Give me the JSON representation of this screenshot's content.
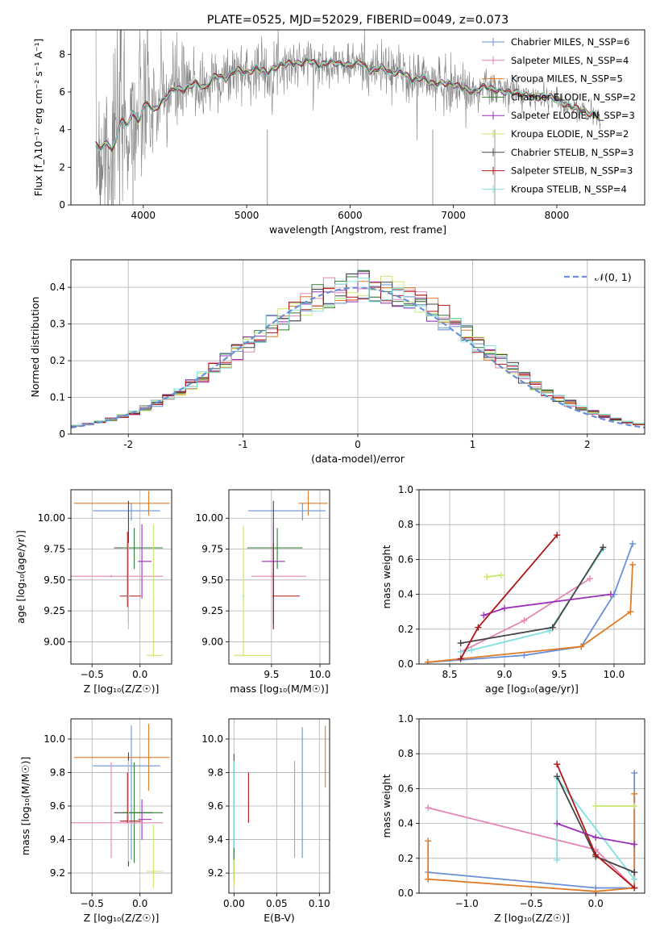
{
  "chart_data": [
    {
      "id": "spectrum",
      "type": "line",
      "title": "PLATE=0525, MJD=52029, FIBERID=0049, z=0.073",
      "xlabel": "wavelength [Angstrom, rest frame]",
      "ylabel": "Flux [f_λ10⁻¹⁷ erg cm⁻² s⁻¹ A⁻¹]",
      "xlim": [
        3300,
        8850
      ],
      "ylim": [
        0,
        9.3
      ],
      "xticks": [
        4000,
        5000,
        6000,
        7000,
        8000
      ],
      "yticks": [
        0,
        2,
        4,
        6,
        8
      ],
      "grid": false,
      "legend_position": "top-right",
      "legend": [
        {
          "label": "Chabrier MILES, N_SSP=6",
          "color": "#6a8fd6"
        },
        {
          "label": "Salpeter MILES, N_SSP=4",
          "color": "#e586b4"
        },
        {
          "label": "Kroupa MILES, N_SSP=5",
          "color": "#e07b28"
        },
        {
          "label": "Chabrier ELODIE, N_SSP=2",
          "color": "#2e7d32"
        },
        {
          "label": "Salpeter ELODIE, N_SSP=3",
          "color": "#9a2fb8"
        },
        {
          "label": "Kroupa ELODIE, N_SSP=2",
          "color": "#c9e86a"
        },
        {
          "label": "Chabrier STELIB, N_SSP=3",
          "color": "#444444"
        },
        {
          "label": "Salpeter STELIB, N_SSP=3",
          "color": "#b01515"
        },
        {
          "label": "Kroupa STELIB, N_SSP=4",
          "color": "#7ee0e0"
        }
      ],
      "data_color": "#808080",
      "data_x": [
        3540,
        3600,
        3650,
        3700,
        3750,
        3800,
        3850,
        3900,
        3950,
        4000,
        4050,
        4100,
        4200,
        4300,
        4400,
        4500,
        4600,
        4700,
        4800,
        4900,
        5000,
        5100,
        5200,
        5300,
        5400,
        5500,
        5600,
        5700,
        5800,
        5900,
        6000,
        6100,
        6200,
        6300,
        6400,
        6500,
        6600,
        6700,
        6800,
        6900,
        7000,
        7100,
        7200,
        7300,
        7400,
        7500,
        7600,
        7700,
        7800,
        7900,
        8000,
        8100,
        8200,
        8300,
        8400
      ],
      "data_y": [
        3.2,
        3.0,
        3.4,
        2.8,
        3.8,
        4.6,
        4.2,
        5.0,
        4.3,
        5.2,
        5.4,
        5.0,
        5.6,
        6.2,
        6.1,
        6.5,
        6.2,
        6.9,
        6.7,
        7.2,
        7.0,
        7.3,
        7.0,
        7.4,
        7.5,
        7.5,
        7.7,
        7.4,
        7.6,
        7.5,
        7.4,
        7.6,
        7.1,
        7.3,
        7.0,
        7.1,
        6.6,
        6.8,
        6.4,
        6.5,
        6.4,
        6.2,
        6.0,
        6.3,
        6.1,
        6.0,
        6.0,
        5.8,
        5.7,
        5.8,
        5.6,
        5.3,
        5.1,
        4.9,
        4.7
      ],
      "noise": [
        5.0,
        5.0,
        5.0,
        5.0,
        4.5,
        4.5,
        4.0,
        4.0,
        3.5,
        3.5,
        3.0,
        3.0,
        2.5,
        2.2,
        2.0,
        1.8,
        1.6,
        1.5,
        1.4,
        1.3,
        1.3,
        1.2,
        1.2,
        1.1,
        1.1,
        1.0,
        1.0,
        1.0,
        0.9,
        0.9,
        1.0,
        1.0,
        1.1,
        1.1,
        1.2,
        1.2,
        1.3,
        1.4,
        1.4,
        1.3,
        1.2,
        1.1,
        1.0,
        0.9,
        0.8,
        0.8,
        0.7,
        0.7,
        0.6,
        0.6,
        0.5,
        0.5,
        0.5,
        0.5,
        0.5
      ]
    },
    {
      "id": "residuals",
      "type": "bar",
      "xlabel": "(data-model)/error",
      "ylabel": "Normed distribution",
      "xlim": [
        -2.5,
        2.5
      ],
      "ylim": [
        0,
        0.475
      ],
      "xticks": [
        -2,
        -1,
        0,
        1,
        2
      ],
      "yticks": [
        0.0,
        0.1,
        0.2,
        0.3,
        0.4
      ],
      "grid": true,
      "legend_position": "top-right",
      "legend": [
        {
          "label": "𝒩(0, 1)",
          "color": "#6a8fd6"
        }
      ],
      "bin_width": 0.1,
      "series_colors": [
        "#6a8fd6",
        "#e586b4",
        "#e07b28",
        "#2e7d32",
        "#9a2fb8",
        "#c9e86a",
        "#444444",
        "#b01515",
        "#7ee0e0"
      ]
    },
    {
      "id": "age-vs-Z",
      "type": "scatter",
      "xlabel": "Z [log₁₀(Z/Z☉)]",
      "ylabel": "age  [log₁₀(age/yr)]",
      "xlim": [
        -0.72,
        0.33
      ],
      "ylim": [
        8.82,
        10.23
      ],
      "xticks": [
        -0.5,
        0.0
      ],
      "xticklabels": [
        "−0.5",
        "0.0"
      ],
      "yticks": [
        9.0,
        9.25,
        9.5,
        9.75,
        10.0
      ],
      "yticklabels": [
        "9.00",
        "9.25",
        "9.50",
        "9.75",
        "10.00"
      ],
      "grid": true,
      "points": [
        {
          "x": 0.09,
          "y": 10.12,
          "xerr": [
            0.78,
            0.22
          ],
          "yerr": [
            0.1,
            0.1
          ],
          "color": "#e07b28"
        },
        {
          "x": -0.09,
          "y": 10.06,
          "xerr": [
            0.4,
            0.3
          ],
          "yerr": [
            0.08,
            0.06
          ],
          "color": "#6a8fd6"
        },
        {
          "x": -0.12,
          "y": 9.76,
          "xerr": [
            0.15,
            0.25
          ],
          "yerr": [
            0.62,
            0.38
          ],
          "color": "#444444"
        },
        {
          "x": -0.06,
          "y": 9.76,
          "xerr": [
            0.12,
            0.3
          ],
          "yerr": [
            0.17,
            0.16
          ],
          "color": "#2e7d32"
        },
        {
          "x": 0.02,
          "y": 9.65,
          "xerr": [
            0.04,
            0.1
          ],
          "yerr": [
            0.3,
            0.3
          ],
          "color": "#9a2fb8"
        },
        {
          "x": -0.3,
          "y": 9.53,
          "xerr": [
            0.48,
            0.54
          ],
          "yerr": [
            0.01,
            0.01
          ],
          "color": "#e586b4"
        },
        {
          "x": -0.13,
          "y": 9.37,
          "xerr": [
            0.08,
            0.14
          ],
          "yerr": [
            0.09,
            0.52
          ],
          "color": "#b01515"
        },
        {
          "x": -0.12,
          "y": 9.37,
          "xerr": [
            0.01,
            0.01
          ],
          "yerr": [
            0.27,
            0.43
          ],
          "color": "#7ee0e0"
        },
        {
          "x": 0.14,
          "y": 8.89,
          "xerr": [
            0.07,
            0.1
          ],
          "yerr": [
            0.01,
            1.06
          ],
          "color": "#c9e86a"
        }
      ]
    },
    {
      "id": "age-vs-mass",
      "type": "scatter",
      "xlabel": "mass [log₁₀(M/M☉)]",
      "ylabel": "",
      "xlim": [
        9.06,
        10.1
      ],
      "ylim": [
        8.82,
        10.23
      ],
      "xticks": [
        9.5,
        10.0
      ],
      "xticklabels": [
        "9.5",
        "10.0"
      ],
      "yticks": [
        9.0,
        9.25,
        9.5,
        9.75,
        10.0
      ],
      "yticklabels": [
        "9.00",
        "9.25",
        "9.50",
        "9.75",
        "10.00"
      ],
      "grid": true,
      "points": [
        {
          "x": 9.88,
          "y": 10.12,
          "xerr": [
            0.1,
            0.2
          ],
          "yerr": [
            0.1,
            0.1
          ],
          "color": "#e07b28"
        },
        {
          "x": 9.82,
          "y": 10.06,
          "xerr": [
            0.56,
            0.24
          ],
          "yerr": [
            0.08,
            0.06
          ],
          "color": "#6a8fd6"
        },
        {
          "x": 9.52,
          "y": 9.76,
          "xerr": [
            0.27,
            0.26
          ],
          "yerr": [
            0.62,
            0.38
          ],
          "color": "#444444"
        },
        {
          "x": 9.56,
          "y": 9.76,
          "xerr": [
            0.3,
            0.26
          ],
          "yerr": [
            0.17,
            0.16
          ],
          "color": "#2e7d32"
        },
        {
          "x": 9.52,
          "y": 9.65,
          "xerr": [
            0.12,
            0.12
          ],
          "yerr": [
            0.3,
            0.3
          ],
          "color": "#9a2fb8"
        },
        {
          "x": 9.5,
          "y": 9.53,
          "xerr": [
            0.21,
            0.36
          ],
          "yerr": [
            0.01,
            0.01
          ],
          "color": "#e586b4"
        },
        {
          "x": 9.52,
          "y": 9.37,
          "xerr": [
            0.01,
            0.27
          ],
          "yerr": [
            0.27,
            0.43
          ],
          "color": "#b01515"
        },
        {
          "x": 9.21,
          "y": 9.37,
          "xerr": [
            0.01,
            0.01
          ],
          "yerr": [
            0.28,
            0.56
          ],
          "color": "#7ee0e0"
        },
        {
          "x": 9.21,
          "y": 8.89,
          "xerr": [
            0.1,
            0.28
          ],
          "yerr": [
            0.01,
            1.05
          ],
          "color": "#c9e86a"
        }
      ]
    },
    {
      "id": "mass-weight-vs-age",
      "type": "line",
      "xlabel": "age  [log₁₀(age/yr)]",
      "ylabel": "mass weight",
      "xlim": [
        8.22,
        10.28
      ],
      "ylim": [
        0,
        1.0
      ],
      "xticks": [
        8.5,
        9.0,
        9.5,
        10.0
      ],
      "xticklabels": [
        "8.5",
        "9.0",
        "9.5",
        "10.0"
      ],
      "yticks": [
        0.0,
        0.2,
        0.4,
        0.6,
        0.8,
        1.0
      ],
      "yticklabels": [
        "0.0",
        "0.2",
        "0.4",
        "0.6",
        "0.8",
        "1.0"
      ],
      "grid": true,
      "series": [
        {
          "color": "#6a8fd6",
          "x": [
            8.3,
            9.18,
            9.7,
            10.0,
            10.17
          ],
          "y": [
            0.01,
            0.05,
            0.1,
            0.4,
            0.69
          ]
        },
        {
          "color": "#e07b28",
          "x": [
            8.3,
            8.6,
            9.7,
            10.15,
            10.17
          ],
          "y": [
            0.01,
            0.03,
            0.1,
            0.3,
            0.57
          ]
        },
        {
          "color": "#e586b4",
          "x": [
            8.6,
            9.18,
            9.78
          ],
          "y": [
            0.07,
            0.25,
            0.49
          ]
        },
        {
          "color": "#7ee0e0",
          "x": [
            8.6,
            8.7,
            9.41,
            9.9
          ],
          "y": [
            0.07,
            0.08,
            0.19,
            0.66
          ]
        },
        {
          "color": "#444444",
          "x": [
            8.6,
            9.44,
            9.9
          ],
          "y": [
            0.12,
            0.21,
            0.67
          ]
        },
        {
          "color": "#9a2fb8",
          "x": [
            8.81,
            9.0,
            9.97
          ],
          "y": [
            0.28,
            0.32,
            0.4
          ]
        },
        {
          "color": "#b01515",
          "x": [
            8.6,
            8.76,
            9.48
          ],
          "y": [
            0.03,
            0.21,
            0.74
          ]
        },
        {
          "color": "#c9e86a",
          "x": [
            8.84,
            8.97
          ],
          "y": [
            0.5,
            0.51
          ]
        }
      ]
    },
    {
      "id": "mass-vs-Z",
      "type": "scatter",
      "xlabel": "Z [log₁₀(Z/Z☉)]",
      "ylabel": "mass [log₁₀(M/M☉)]",
      "xlim": [
        -0.72,
        0.33
      ],
      "ylim": [
        9.08,
        10.12
      ],
      "xticks": [
        -0.5,
        0.0
      ],
      "xticklabels": [
        "−0.5",
        "0.0"
      ],
      "yticks": [
        9.2,
        9.4,
        9.6,
        9.8,
        10.0
      ],
      "yticklabels": [
        "9.2",
        "9.4",
        "9.6",
        "9.8",
        "10.0"
      ],
      "grid": true,
      "points": [
        {
          "x": 0.09,
          "y": 9.89,
          "xerr": [
            0.78,
            0.22
          ],
          "yerr": [
            0.2,
            0.2
          ],
          "color": "#e07b28"
        },
        {
          "x": -0.09,
          "y": 9.84,
          "xerr": [
            0.4,
            0.3
          ],
          "yerr": [
            0.56,
            0.24
          ],
          "color": "#6a8fd6"
        },
        {
          "x": -0.12,
          "y": 9.56,
          "xerr": [
            0.15,
            0.25
          ],
          "yerr": [
            0.32,
            0.36
          ],
          "color": "#444444"
        },
        {
          "x": -0.06,
          "y": 9.56,
          "xerr": [
            0.12,
            0.3
          ],
          "yerr": [
            0.3,
            0.3
          ],
          "color": "#2e7d32"
        },
        {
          "x": 0.02,
          "y": 9.52,
          "xerr": [
            0.04,
            0.1
          ],
          "yerr": [
            0.12,
            0.12
          ],
          "color": "#9a2fb8"
        },
        {
          "x": -0.3,
          "y": 9.5,
          "xerr": [
            0.48,
            0.54
          ],
          "yerr": [
            0.21,
            0.36
          ],
          "color": "#e586b4"
        },
        {
          "x": -0.13,
          "y": 9.51,
          "xerr": [
            0.08,
            0.14
          ],
          "yerr": [
            0.01,
            0.29
          ],
          "color": "#b01515"
        },
        {
          "x": -0.12,
          "y": 9.55,
          "xerr": [
            0.01,
            0.01
          ],
          "yerr": [
            0.28,
            0.32
          ],
          "color": "#7ee0e0"
        },
        {
          "x": 0.14,
          "y": 9.21,
          "xerr": [
            0.07,
            0.1
          ],
          "yerr": [
            0.1,
            0.28
          ],
          "color": "#c9e86a"
        }
      ]
    },
    {
      "id": "mass-vs-EBV",
      "type": "scatter",
      "xlabel": "E(B-V)",
      "ylabel": "",
      "xlim": [
        -0.006,
        0.112
      ],
      "ylim": [
        9.08,
        10.12
      ],
      "xticks": [
        0.0,
        0.05,
        0.1
      ],
      "xticklabels": [
        "0.00",
        "0.05",
        "0.10"
      ],
      "yticks": [
        9.2,
        9.4,
        9.6,
        9.8,
        10.0
      ],
      "yticklabels": [
        "9.2",
        "9.4",
        "9.6",
        "9.8",
        "10.0"
      ],
      "grid": true,
      "points": [
        {
          "x": 0.107,
          "y": 9.89,
          "yerr": [
            0.18,
            0.19
          ],
          "color": "#e07b28"
        },
        {
          "x": 0.08,
          "y": 9.67,
          "yerr": [
            0.38,
            0.4
          ],
          "color": "#6a8fd6"
        },
        {
          "x": 0.071,
          "y": 9.58,
          "yerr": [
            0.29,
            0.29
          ],
          "color": "#e586b4"
        },
        {
          "x": 0.017,
          "y": 9.65,
          "yerr": [
            0.15,
            0.15
          ],
          "color": "#b01515"
        },
        {
          "x": 0.0,
          "y": 9.6,
          "yerr": [
            0.31,
            0.31
          ],
          "color": "#444444"
        },
        {
          "x": 0.0,
          "y": 9.55,
          "yerr": [
            0.32,
            0.32
          ],
          "color": "#7ee0e0"
        },
        {
          "x": 0.0,
          "y": 9.25,
          "yerr": [
            0.1,
            0.1
          ],
          "color": "#2e7d32"
        },
        {
          "x": 0.0,
          "y": 9.2,
          "yerr": [
            0.08,
            0.08
          ],
          "color": "#c9e86a"
        }
      ]
    },
    {
      "id": "mass-weight-vs-Z",
      "type": "line",
      "xlabel": "Z [log₁₀(Z/Z☉)]",
      "ylabel": "mass weight",
      "xlim": [
        -1.37,
        0.38
      ],
      "ylim": [
        0,
        1.0
      ],
      "xticks": [
        -1.0,
        -0.5,
        0.0
      ],
      "xticklabels": [
        "−1.0",
        "−0.5",
        "0.0"
      ],
      "yticks": [
        0.0,
        0.2,
        0.4,
        0.6,
        0.8,
        1.0
      ],
      "yticklabels": [
        "0.0",
        "0.2",
        "0.4",
        "0.6",
        "0.8",
        "1.0"
      ],
      "grid": true,
      "series": [
        {
          "color": "#6a8fd6",
          "x": [
            -1.3,
            0.0,
            0.3,
            0.3
          ],
          "y": [
            0.12,
            0.03,
            0.03,
            0.69
          ]
        },
        {
          "color": "#e07b28",
          "x": [
            -1.3,
            -1.3,
            0.0,
            0.3,
            0.3
          ],
          "y": [
            0.3,
            0.08,
            0.01,
            0.03,
            0.57
          ]
        },
        {
          "color": "#e586b4",
          "x": [
            -1.3,
            0.0,
            0.3
          ],
          "y": [
            0.49,
            0.25,
            0.03
          ]
        },
        {
          "color": "#7ee0e0",
          "x": [
            -0.3,
            -0.3,
            0.3
          ],
          "y": [
            0.19,
            0.66,
            0.08
          ]
        },
        {
          "color": "#444444",
          "x": [
            -0.3,
            0.0,
            0.3
          ],
          "y": [
            0.67,
            0.21,
            0.12
          ]
        },
        {
          "color": "#9a2fb8",
          "x": [
            -0.3,
            0.0,
            0.3
          ],
          "y": [
            0.4,
            0.32,
            0.28
          ]
        },
        {
          "color": "#b01515",
          "x": [
            -0.3,
            0.0,
            0.3
          ],
          "y": [
            0.74,
            0.22,
            0.03
          ]
        },
        {
          "color": "#c9e86a",
          "x": [
            0.0,
            0.3
          ],
          "y": [
            0.5,
            0.5
          ]
        }
      ]
    }
  ]
}
